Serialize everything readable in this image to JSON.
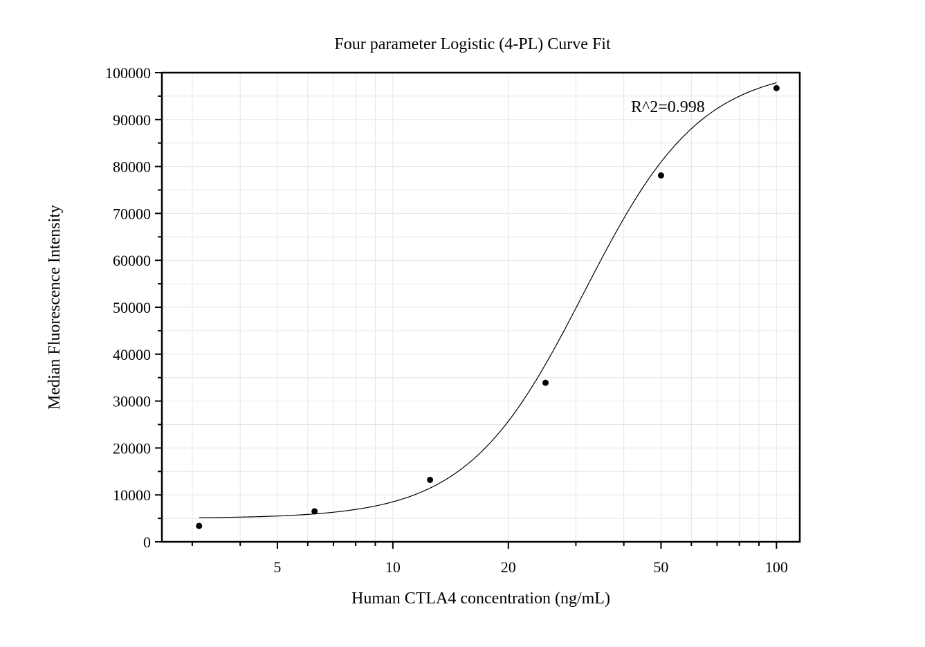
{
  "chart_data": {
    "type": "scatter",
    "title": "Four parameter Logistic (4-PL) Curve Fit",
    "xlabel": "Human CTLA4 concentration (ng/mL)",
    "ylabel": "Median Fluorescence Intensity",
    "x_scale": "log",
    "xlim": [
      2.5,
      115
    ],
    "ylim": [
      0,
      100000
    ],
    "x_ticks": [
      5,
      10,
      20,
      50,
      100
    ],
    "x_tick_labels": [
      "5",
      "10",
      "20",
      "50",
      "100"
    ],
    "y_ticks": [
      0,
      10000,
      20000,
      30000,
      40000,
      50000,
      60000,
      70000,
      80000,
      90000,
      100000
    ],
    "y_tick_labels": [
      "0",
      "10000",
      "20000",
      "30000",
      "40000",
      "50000",
      "60000",
      "70000",
      "80000",
      "90000",
      "100000"
    ],
    "grid": true,
    "points": [
      {
        "x": 3.125,
        "y": 3400
      },
      {
        "x": 6.25,
        "y": 6500
      },
      {
        "x": 12.5,
        "y": 13200
      },
      {
        "x": 25,
        "y": 33900
      },
      {
        "x": 50,
        "y": 78100
      },
      {
        "x": 100,
        "y": 96700
      }
    ],
    "fit": {
      "model": "4-PL",
      "A": 5000,
      "D": 101300,
      "C": 31.5,
      "B": 2.85,
      "x_range": [
        3.125,
        100
      ]
    },
    "annotation": "R^2=0.998"
  }
}
